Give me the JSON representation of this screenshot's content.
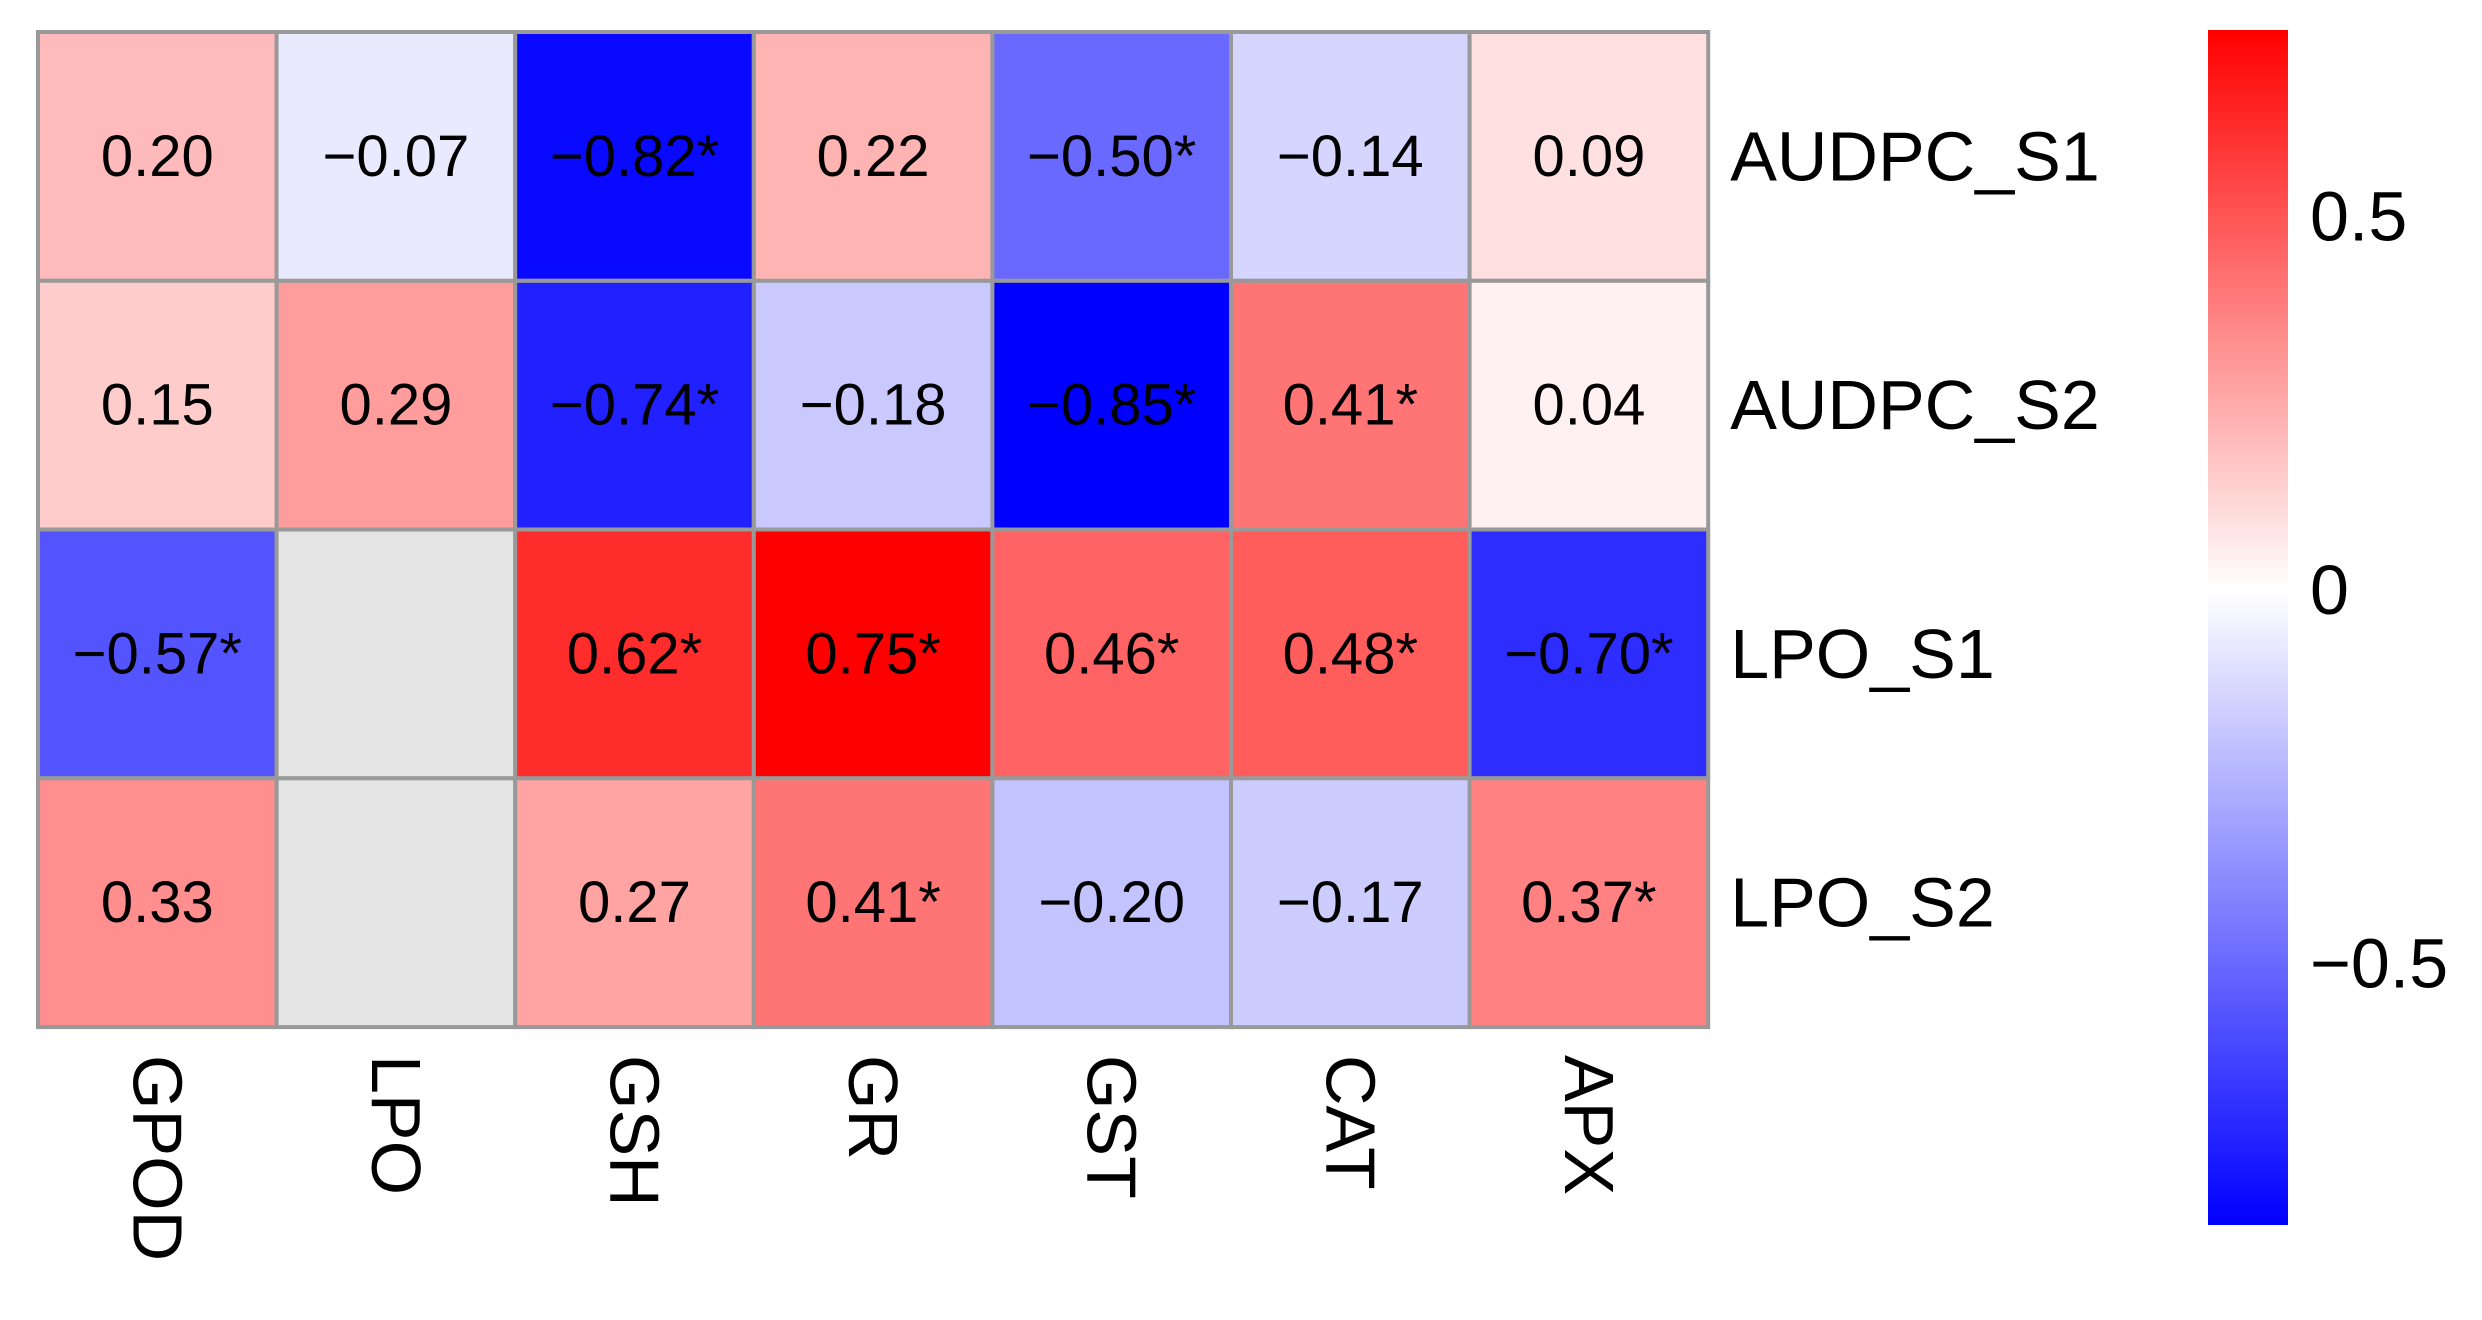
{
  "chart_data": {
    "type": "heatmap",
    "rows": [
      "AUDPC_S1",
      "AUDPC_S2",
      "LPO_S1",
      "LPO_S2"
    ],
    "columns": [
      "GPOD",
      "LPO",
      "GSH",
      "GR",
      "GST",
      "CAT",
      "APX"
    ],
    "values": [
      [
        0.2,
        -0.07,
        -0.82,
        0.22,
        -0.5,
        -0.14,
        0.09
      ],
      [
        0.15,
        0.29,
        -0.74,
        -0.18,
        -0.85,
        0.41,
        0.04
      ],
      [
        -0.57,
        null,
        0.62,
        0.75,
        0.46,
        0.48,
        -0.7
      ],
      [
        0.33,
        null,
        0.27,
        0.41,
        -0.2,
        -0.17,
        0.37
      ]
    ],
    "labels": [
      [
        "0.20",
        "−0.07",
        "−0.82*",
        "0.22",
        "−0.50*",
        "−0.14",
        "0.09"
      ],
      [
        "0.15",
        "0.29",
        "−0.74*",
        "−0.18",
        "−0.85*",
        "0.41*",
        "0.04"
      ],
      [
        "−0.57*",
        "",
        "0.62*",
        "0.75*",
        "0.46*",
        "0.48*",
        "−0.70*"
      ],
      [
        "0.33",
        "",
        "0.27",
        "0.41*",
        "−0.20",
        "−0.17",
        "0.37*"
      ]
    ],
    "missing_color": "#e5e5e5",
    "colorbar": {
      "range": [
        -0.85,
        0.75
      ],
      "ticks": [
        0.5,
        0,
        -0.5
      ],
      "tick_labels": [
        "0.5",
        "0",
        "−0.5"
      ],
      "low_color": "#0000ff",
      "mid_color": "#ffffff",
      "high_color": "#ff0000"
    }
  }
}
